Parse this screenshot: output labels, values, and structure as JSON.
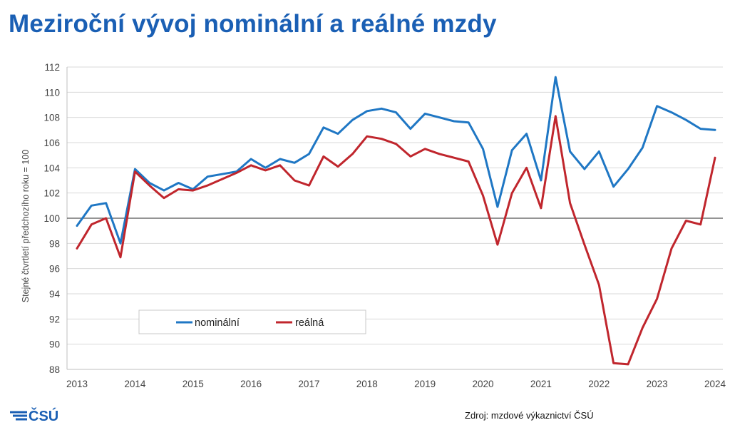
{
  "title": "Meziroční vývoj nominální a reálné mzdy",
  "source": "Zdroj: mzdové výkaznictví ČSÚ",
  "logo_text": "ČSÚ",
  "colors": {
    "title": "#1a5fb4",
    "nominal": "#1f77c4",
    "real": "#c0262d",
    "logo": "#1a5fb4"
  },
  "chart_data": {
    "type": "line",
    "title": "Meziroční vývoj nominální a reálné mzdy",
    "xlabel": "",
    "ylabel": "Stejné čtvrtletí předchozího roku = 100",
    "ylim": [
      88,
      112
    ],
    "yticks": [
      88,
      90,
      92,
      94,
      96,
      98,
      100,
      102,
      104,
      106,
      108,
      110,
      112
    ],
    "xlim": [
      2013,
      2024
    ],
    "xticks": [
      "2013",
      "2014",
      "2015",
      "2016",
      "2017",
      "2018",
      "2019",
      "2020",
      "2021",
      "2022",
      "2023",
      "2024"
    ],
    "reference_line": 100,
    "legend_position": "lower-left",
    "grid": "horizontal",
    "series": [
      {
        "name": "nominální",
        "color": "#1f77c4",
        "x": [
          2013.0,
          2013.25,
          2013.5,
          2013.75,
          2014.0,
          2014.25,
          2014.5,
          2014.75,
          2015.0,
          2015.25,
          2015.5,
          2015.75,
          2016.0,
          2016.25,
          2016.5,
          2016.75,
          2017.0,
          2017.25,
          2017.5,
          2017.75,
          2018.0,
          2018.25,
          2018.5,
          2018.75,
          2019.0,
          2019.25,
          2019.5,
          2019.75,
          2020.0,
          2020.25,
          2020.5,
          2020.75,
          2021.0,
          2021.25,
          2021.5,
          2021.75,
          2022.0,
          2022.25,
          2022.5,
          2022.75,
          2023.0,
          2023.25,
          2023.5,
          2023.75,
          2024.0
        ],
        "values": [
          99.4,
          101.0,
          101.2,
          98.0,
          103.9,
          102.8,
          102.2,
          102.8,
          102.3,
          103.3,
          103.5,
          103.7,
          104.7,
          104.0,
          104.7,
          104.4,
          105.1,
          107.2,
          106.7,
          107.8,
          108.5,
          108.7,
          108.4,
          107.1,
          108.3,
          108.0,
          107.7,
          107.6,
          105.5,
          100.9,
          105.4,
          106.7,
          103.0,
          111.2,
          105.3,
          103.9,
          105.3,
          102.5,
          103.9,
          105.6,
          108.9,
          108.4,
          107.8,
          107.1,
          107.0
        ]
      },
      {
        "name": "reálná",
        "color": "#c0262d",
        "x": [
          2013.0,
          2013.25,
          2013.5,
          2013.75,
          2014.0,
          2014.25,
          2014.5,
          2014.75,
          2015.0,
          2015.25,
          2015.5,
          2015.75,
          2016.0,
          2016.25,
          2016.5,
          2016.75,
          2017.0,
          2017.25,
          2017.5,
          2017.75,
          2018.0,
          2018.25,
          2018.5,
          2018.75,
          2019.0,
          2019.25,
          2019.5,
          2019.75,
          2020.0,
          2020.25,
          2020.5,
          2020.75,
          2021.0,
          2021.25,
          2021.5,
          2021.75,
          2022.0,
          2022.25,
          2022.5,
          2022.75,
          2023.0,
          2023.25,
          2023.5,
          2023.75,
          2024.0
        ],
        "values": [
          97.6,
          99.5,
          100.0,
          96.9,
          103.7,
          102.6,
          101.6,
          102.3,
          102.2,
          102.6,
          103.1,
          103.6,
          104.2,
          103.8,
          104.2,
          103.0,
          102.6,
          104.9,
          104.1,
          105.1,
          106.5,
          106.3,
          105.9,
          104.9,
          105.5,
          105.1,
          104.8,
          104.5,
          101.8,
          97.9,
          102.0,
          104.0,
          100.8,
          108.1,
          101.2,
          97.9,
          94.7,
          88.5,
          88.4,
          91.3,
          93.6,
          97.6,
          99.8,
          99.5,
          104.8
        ]
      }
    ]
  }
}
